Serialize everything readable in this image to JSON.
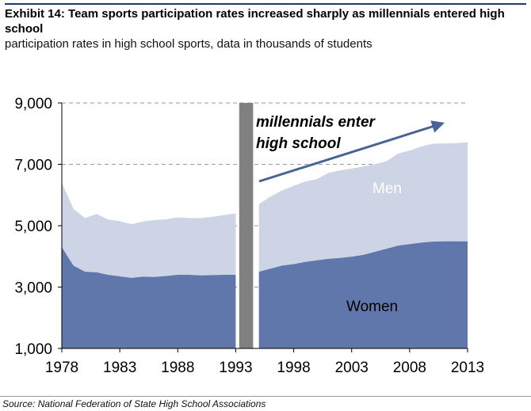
{
  "title": "Exhibit 14: Team sports participation rates increased sharply as millennials entered high school",
  "subtitle": "participation rates in high school sports, data in thousands of students",
  "source": "Source: National Federation of State High School Associations",
  "chart_data": {
    "type": "area",
    "stacked": true,
    "x": [
      1978,
      1979,
      1980,
      1981,
      1982,
      1983,
      1984,
      1985,
      1986,
      1987,
      1988,
      1989,
      1990,
      1991,
      1992,
      1993,
      1994,
      1995,
      1996,
      1997,
      1998,
      1999,
      2000,
      2001,
      2002,
      2003,
      2004,
      2005,
      2006,
      2007,
      2008,
      2009,
      2010,
      2011,
      2012,
      2013
    ],
    "series": [
      {
        "name": "Women",
        "color": "#5f77aa",
        "values": [
          4300,
          3700,
          3500,
          3480,
          3400,
          3350,
          3300,
          3340,
          3330,
          3360,
          3400,
          3400,
          3380,
          3390,
          3400,
          3400,
          null,
          3500,
          3600,
          3700,
          3750,
          3820,
          3870,
          3920,
          3950,
          3990,
          4050,
          4150,
          4250,
          4350,
          4400,
          4450,
          4480,
          4490,
          4490,
          4490
        ]
      },
      {
        "name": "Men",
        "color": "#cdd4e6",
        "values": [
          2100,
          1850,
          1750,
          1900,
          1800,
          1800,
          1750,
          1800,
          1850,
          1850,
          1870,
          1850,
          1870,
          1900,
          1950,
          2000,
          null,
          2200,
          2350,
          2450,
          2550,
          2620,
          2650,
          2800,
          2850,
          2870,
          2880,
          2850,
          2850,
          3000,
          3050,
          3130,
          3190,
          3190,
          3200,
          3230
        ]
      }
    ],
    "y_ticks": [
      "1,000",
      "3,000",
      "5,000",
      "7,000",
      "9,000"
    ],
    "x_ticks": [
      "1978",
      "1983",
      "1988",
      "1993",
      "1998",
      "2003",
      "2008",
      "2013"
    ],
    "ylim": [
      1000,
      9000
    ],
    "grid": "horizontal dashed",
    "highlight": {
      "x_start": 1993.3,
      "x_end": 1994.5,
      "color": "#808080"
    },
    "annotations": {
      "millennials_line1": "millennials enter",
      "millennials_line2": "high school",
      "men_label": "Men",
      "women_label": "Women"
    },
    "arrow_color": "#4a6396"
  }
}
